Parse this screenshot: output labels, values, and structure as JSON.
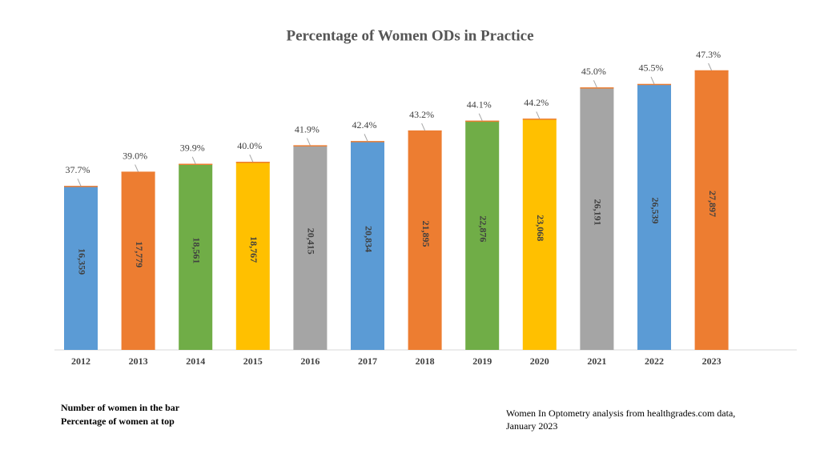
{
  "chart_data": {
    "type": "bar",
    "title": "Percentage of Women ODs in Practice",
    "categories": [
      "2012",
      "2013",
      "2014",
      "2015",
      "2016",
      "2017",
      "2018",
      "2019",
      "2020",
      "2021",
      "2022",
      "2023"
    ],
    "values": [
      16359,
      17779,
      18561,
      18767,
      20415,
      20834,
      21895,
      22876,
      23068,
      26191,
      26539,
      27897
    ],
    "value_labels": [
      "16,359",
      "17,779",
      "18,561",
      "18,767",
      "20,415",
      "20,834",
      "21,895",
      "22,876",
      "23,068",
      "26,191",
      "26,539",
      "27,897"
    ],
    "percentages": [
      37.7,
      39.0,
      39.9,
      40.0,
      41.9,
      42.4,
      43.2,
      44.1,
      44.2,
      45.0,
      45.5,
      47.3
    ],
    "percentage_labels": [
      "37.7%",
      "39.0%",
      "39.9%",
      "40.0%",
      "41.9%",
      "42.4%",
      "43.2%",
      "44.1%",
      "44.2%",
      "45.0%",
      "45.5%",
      "47.3%"
    ],
    "colors": [
      "#5b9bd5",
      "#ed7d31",
      "#70ad47",
      "#ffc000",
      "#a5a5a5",
      "#5b9bd5",
      "#ed7d31",
      "#70ad47",
      "#ffc000",
      "#a5a5a5",
      "#5b9bd5",
      "#ed7d31"
    ],
    "notes": [
      "Number of women in the bar",
      "Percentage of women at top"
    ],
    "source": [
      "Women In Optometry analysis from healthgrades.com data,",
      "January 2023"
    ]
  }
}
